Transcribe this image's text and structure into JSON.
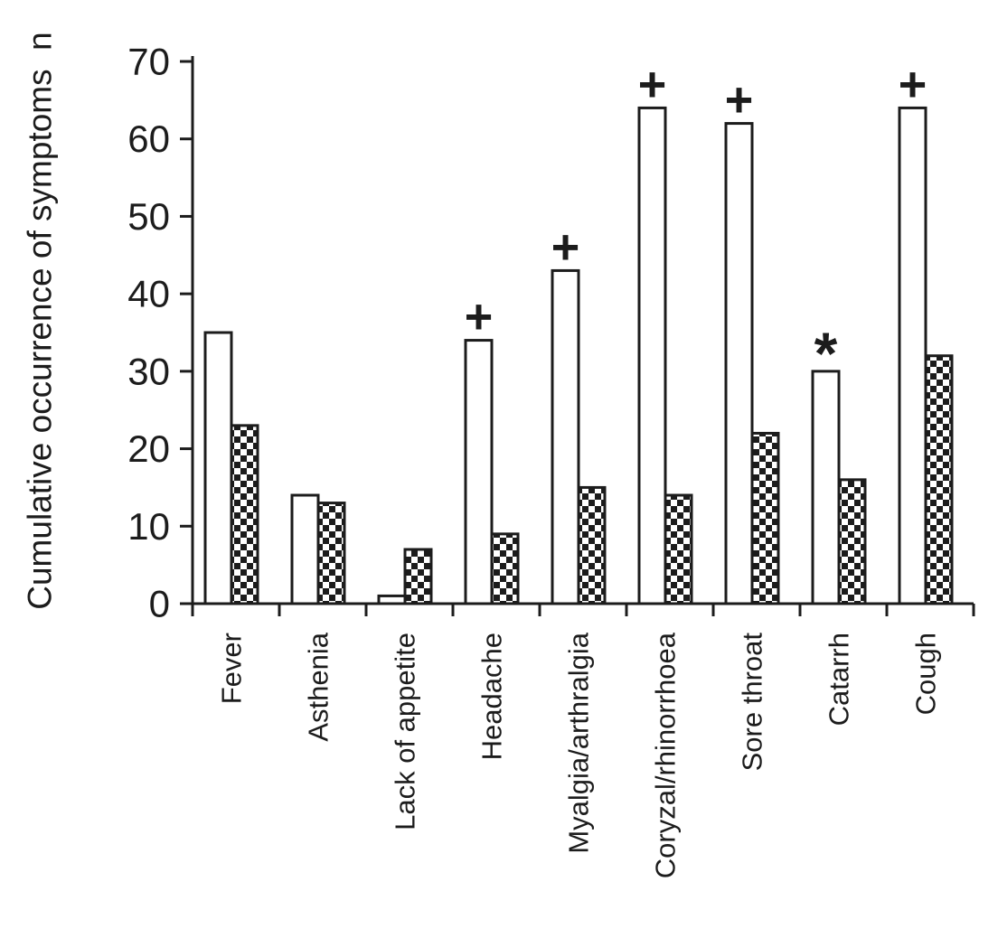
{
  "figure": {
    "description": "Grouped bar chart of cumulative occurrence of symptoms"
  },
  "chart_data": {
    "type": "bar",
    "title": "",
    "xlabel": "",
    "ylabel": "Cumulative occurrence of symptoms  n",
    "ylim": [
      0,
      70
    ],
    "yticks": [
      0,
      10,
      20,
      30,
      40,
      50,
      60,
      70
    ],
    "grid": false,
    "legend": "none",
    "categories": [
      "Fever",
      "Asthenia",
      "Lack of appetite",
      "Headache",
      "Myalgia/arthralgia",
      "Coryzal/rhinorrhoea",
      "Sore throat",
      "Catarrh",
      "Cough"
    ],
    "series": [
      {
        "name": "open-bars",
        "fill": "white",
        "values": [
          35,
          14,
          1,
          34,
          43,
          64,
          62,
          30,
          64
        ]
      },
      {
        "name": "checkered-bars",
        "fill": "checkerboard",
        "values": [
          23,
          13,
          7,
          9,
          15,
          14,
          22,
          16,
          32
        ]
      }
    ],
    "annotations": [
      {
        "category": "Headache",
        "series": "open-bars",
        "symbol": "+"
      },
      {
        "category": "Myalgia/arthralgia",
        "series": "open-bars",
        "symbol": "+"
      },
      {
        "category": "Coryzal/rhinorrhoea",
        "series": "open-bars",
        "symbol": "+"
      },
      {
        "category": "Sore throat",
        "series": "open-bars",
        "symbol": "+"
      },
      {
        "category": "Catarrh",
        "series": "open-bars",
        "symbol": "*"
      },
      {
        "category": "Cough",
        "series": "open-bars",
        "symbol": "+"
      }
    ],
    "colors": {
      "ink": "#1c1c1c",
      "background": "#ffffff"
    }
  }
}
